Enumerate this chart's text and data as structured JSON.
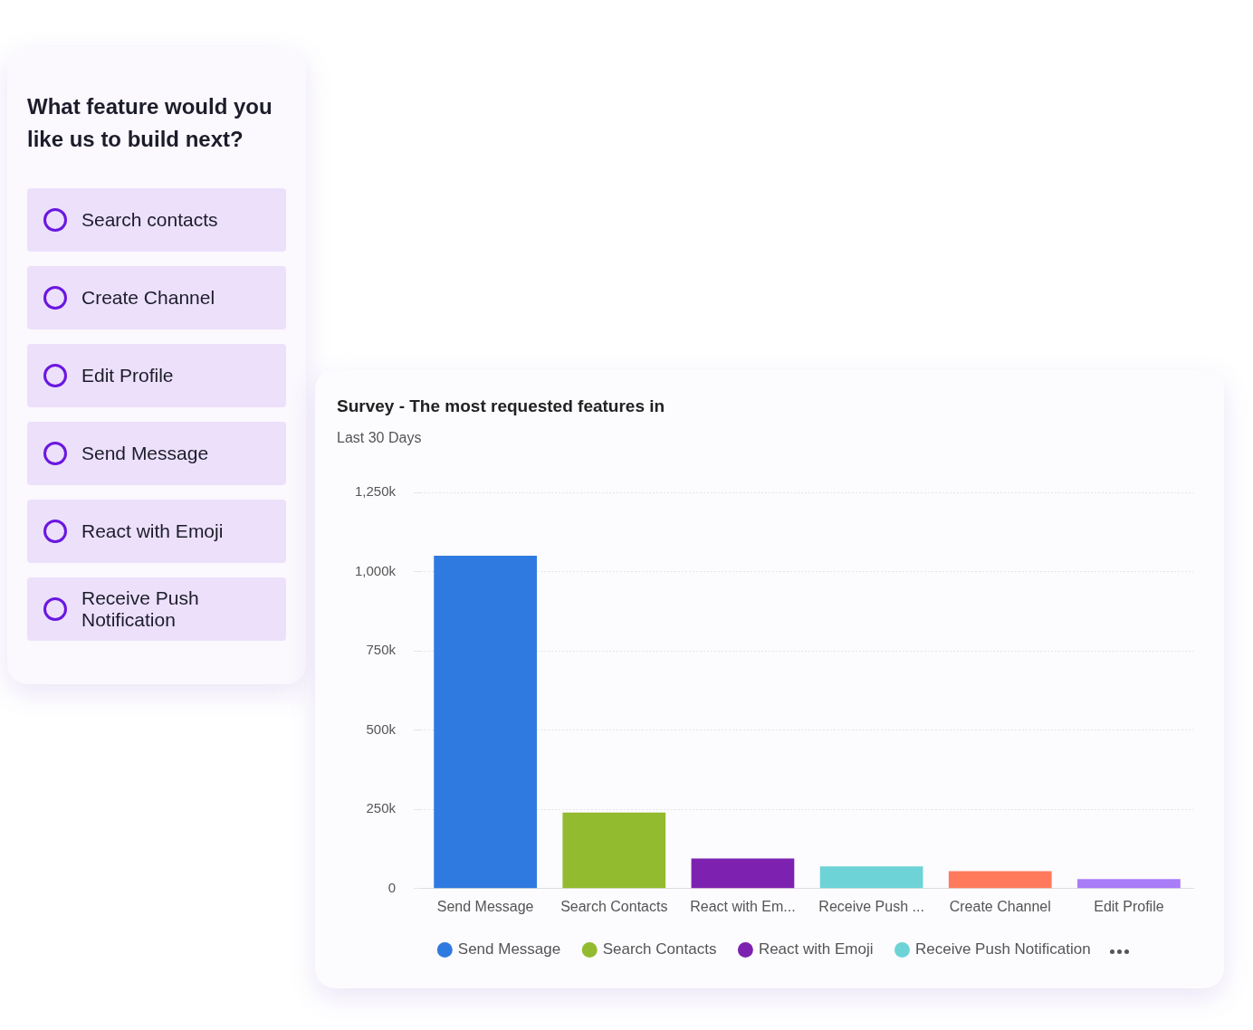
{
  "chart_data": [
    {
      "type": "other",
      "title": "What feature would you like us to build next?",
      "annotations": [
        "Search contacts",
        "Create Channel",
        "Edit Profile",
        "Send Message",
        "React with Emoji",
        "Receive Push Notification"
      ]
    },
    {
      "type": "bar",
      "title": "Survey - The most requested features in",
      "subtitle": "Last 30 Days",
      "categories": [
        "Send Message",
        "Search Contacts",
        "React with Em...",
        "Receive Push ...",
        "Create Channel",
        "Edit Profile"
      ],
      "series": [
        {
          "name": "Send Message",
          "color": "#2f7ae0",
          "values": [
            1050000,
            null,
            null,
            null,
            null,
            null
          ]
        },
        {
          "name": "Search Contacts",
          "color": "#93bb2f",
          "values": [
            null,
            240000,
            null,
            null,
            null,
            null
          ]
        },
        {
          "name": "React with Emoji",
          "color": "#7d22b0",
          "values": [
            null,
            null,
            95000,
            null,
            null,
            null
          ]
        },
        {
          "name": "Receive Push Notification",
          "color": "#6dd3d6",
          "values": [
            null,
            null,
            null,
            70000,
            null,
            null
          ]
        },
        {
          "color": "#ff7a5c",
          "values": [
            null,
            null,
            null,
            null,
            55000,
            null
          ]
        },
        {
          "color": "#a97cf8",
          "values": [
            null,
            null,
            null,
            null,
            null,
            30000
          ]
        }
      ],
      "ylim": [
        0,
        1250000
      ],
      "yticks": [
        {
          "value": 0,
          "label": "0"
        },
        {
          "value": 250000,
          "label": "250k"
        },
        {
          "value": 500000,
          "label": "500k"
        },
        {
          "value": 750000,
          "label": "750k"
        },
        {
          "value": 1000000,
          "label": "1,000k"
        },
        {
          "value": 1250000,
          "label": "1,250k"
        }
      ],
      "grid": "y",
      "legend": "bottom"
    }
  ]
}
